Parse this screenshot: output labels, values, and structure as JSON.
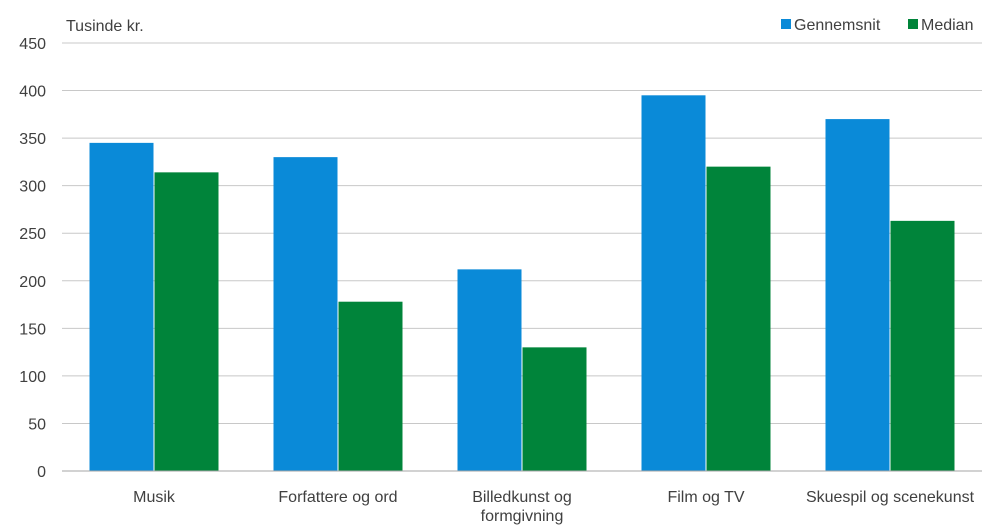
{
  "chart_data": {
    "type": "bar",
    "ylabel": "Tusinde kr.",
    "ylim": [
      0,
      450
    ],
    "yticks": [
      0,
      50,
      100,
      150,
      200,
      250,
      300,
      350,
      400,
      450
    ],
    "grid": true,
    "legend_position": "top-right",
    "categories": [
      [
        "Musik"
      ],
      [
        "Forfattere og ord"
      ],
      [
        "Billedkunst og",
        "formgivning"
      ],
      [
        "Film og TV"
      ],
      [
        "Skuespil og scenekunst"
      ]
    ],
    "series": [
      {
        "name": "Gennemsnit",
        "color": "#0a8ad8",
        "values": [
          345,
          330,
          212,
          395,
          370
        ]
      },
      {
        "name": "Median",
        "color": "#00843a",
        "values": [
          314,
          178,
          130,
          320,
          263
        ]
      }
    ]
  }
}
